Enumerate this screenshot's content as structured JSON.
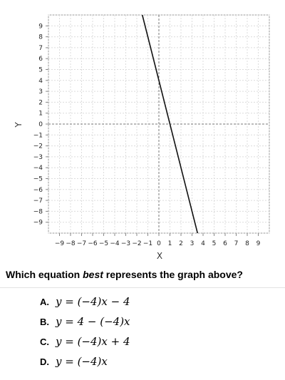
{
  "chart_data": {
    "type": "line",
    "xlabel": "X",
    "ylabel": "Y",
    "xlim": [
      -10,
      10
    ],
    "ylim": [
      -10,
      10
    ],
    "xticks": [
      -9,
      -8,
      -7,
      -6,
      -5,
      -4,
      -3,
      -2,
      -1,
      0,
      1,
      2,
      3,
      4,
      5,
      6,
      7,
      8,
      9
    ],
    "yticks": [
      -9,
      -8,
      -7,
      -6,
      -5,
      -4,
      -3,
      -2,
      -1,
      0,
      1,
      2,
      3,
      4,
      5,
      6,
      7,
      8,
      9
    ],
    "grid": true,
    "series": [
      {
        "x": [
          -1.5,
          3.5
        ],
        "y": [
          10,
          -10
        ]
      }
    ]
  },
  "question": {
    "prefix": "Which equation ",
    "emphasis": "best",
    "suffix": " represents the graph above?"
  },
  "choices": [
    {
      "letter": "A.",
      "equation": "y = (−4)x − 4"
    },
    {
      "letter": "B.",
      "equation": "y = 4 − (−4)x"
    },
    {
      "letter": "C.",
      "equation": "y = (−4)x + 4"
    },
    {
      "letter": "D.",
      "equation": "y = (−4)x"
    }
  ]
}
